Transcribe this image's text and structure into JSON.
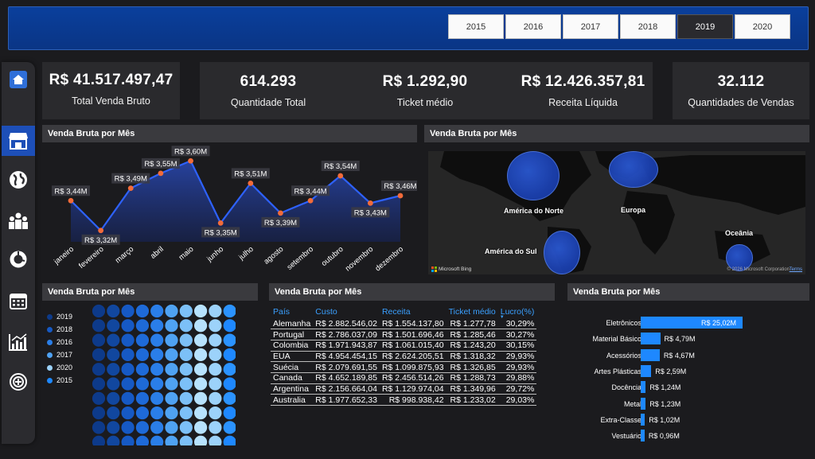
{
  "years": [
    "2015",
    "2016",
    "2017",
    "2018",
    "2019",
    "2020"
  ],
  "active_year": "2019",
  "nav": [
    "home-icon",
    "store-icon",
    "globe-icon",
    "team-icon",
    "donut-chart-icon",
    "calendar-icon",
    "bar-chart-icon",
    "plus-target-icon"
  ],
  "kpis": [
    {
      "value": "R$ 41.517.497,47",
      "label": "Total Venda Bruto"
    },
    {
      "value": "614.293",
      "label": "Quantidade Total"
    },
    {
      "value": "R$ 1.292,90",
      "label": "Ticket médio"
    },
    {
      "value": "R$ 12.426.357,81",
      "label": "Receita Líquida"
    },
    {
      "value": "32.112",
      "label": "Quantidades de Vendas"
    }
  ],
  "panels": {
    "line_title": "Venda Bruta por Mês",
    "map_title": "Venda Bruta por Mês",
    "dots_title": "Venda Bruta por Mês",
    "table_title": "Venda Bruta por Mês",
    "bar_title": "Venda Bruta por Mês"
  },
  "map": {
    "labels": [
      "América do Norte",
      "Europa",
      "América do Sul",
      "Oceânia"
    ],
    "attribution": "Microsoft Bing",
    "copyright": "© 2026 Microsoft Corporation",
    "terms": "Terms"
  },
  "dot_legend": [
    "2019",
    "2018",
    "2016",
    "2017",
    "2020",
    "2015"
  ],
  "dot_legend_colors": [
    "#0d3a8a",
    "#1659c4",
    "#2a7ee8",
    "#4fa2f2",
    "#9cd2fa",
    "#1e88ff"
  ],
  "table": {
    "headers": [
      "País",
      "Custo",
      "Receita",
      "Ticket médio",
      "Lucro(%)"
    ],
    "rows": [
      [
        "Alemanha",
        "R$ 2.882.546,02",
        "R$ 1.554.137,80",
        "R$ 1.277,78",
        "30,29%"
      ],
      [
        "Portugal",
        "R$ 2.786.037,09",
        "R$ 1.501.696,46",
        "R$ 1.285,46",
        "30,27%"
      ],
      [
        "Colombia",
        "R$ 1.971.943,87",
        "R$ 1.061.015,40",
        "R$ 1.243,20",
        "30,15%"
      ],
      [
        "EUA",
        "R$ 4.954.454,15",
        "R$ 2.624.205,51",
        "R$ 1.318,32",
        "29,93%"
      ],
      [
        "Suécia",
        "R$ 2.079.691,55",
        "R$ 1.099.875,93",
        "R$ 1.326,85",
        "29,93%"
      ],
      [
        "Canada",
        "R$ 4.652.189,85",
        "R$ 2.456.514,26",
        "R$ 1.288,73",
        "29,88%"
      ],
      [
        "Argentina",
        "R$ 2.156.664,04",
        "R$ 1.129.974,04",
        "R$ 1.349,96",
        "29,72%"
      ],
      [
        "Australia",
        "R$ 1.977.652,33",
        "R$ 998.938,42",
        "R$ 1.233,02",
        "29,03%"
      ]
    ]
  },
  "chart_data": [
    {
      "type": "line",
      "title": "Venda Bruta por Mês",
      "categories": [
        "janeiro",
        "fevereiro",
        "março",
        "abril",
        "maio",
        "junho",
        "julho",
        "agosto",
        "setembro",
        "outubro",
        "novembro",
        "dezembro"
      ],
      "values": [
        3.44,
        3.32,
        3.49,
        3.55,
        3.6,
        3.35,
        3.51,
        3.39,
        3.44,
        3.54,
        3.43,
        3.46
      ],
      "labels": [
        "R$ 3,44M",
        "R$ 3,32M",
        "R$ 3,49M",
        "R$ 3,55M",
        "R$ 3,60M",
        "R$ 3,35M",
        "R$ 3,51M",
        "R$ 3,39M",
        "R$ 3,44M",
        "R$ 3,54M",
        "R$ 3,43M",
        "R$ 3,46M"
      ],
      "grid": false
    },
    {
      "type": "bar",
      "title": "Venda Bruta por Mês",
      "orientation": "horizontal",
      "categories": [
        "Eletrônicos",
        "Material Básico",
        "Acessórios",
        "Artes Plásticas",
        "Docência",
        "Metal",
        "Extra-Classe",
        "Vestuário"
      ],
      "values": [
        25.02,
        4.79,
        4.67,
        2.59,
        1.24,
        1.23,
        1.02,
        0.96
      ],
      "labels": [
        "R$ 25,02M",
        "R$ 4,79M",
        "R$ 4,67M",
        "R$ 2,59M",
        "R$ 1,24M",
        "R$ 1,23M",
        "R$ 1,02M",
        "R$ 0,96M"
      ]
    }
  ]
}
